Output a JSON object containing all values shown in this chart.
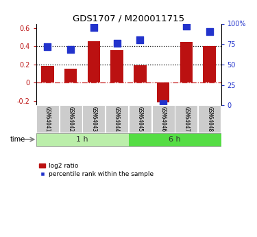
{
  "title": "GDS1707 / M200011715",
  "samples": [
    "GSM64041",
    "GSM64042",
    "GSM64043",
    "GSM64044",
    "GSM64045",
    "GSM64046",
    "GSM64047",
    "GSM64048"
  ],
  "log2_ratio": [
    0.18,
    0.15,
    0.46,
    0.36,
    0.19,
    -0.22,
    0.45,
    0.4
  ],
  "percentile_rank": [
    0.72,
    0.68,
    0.95,
    0.76,
    0.8,
    0.02,
    0.97,
    0.9
  ],
  "groups": [
    {
      "label": "1 h",
      "start": 0,
      "end": 4
    },
    {
      "label": "6 h",
      "start": 4,
      "end": 8
    }
  ],
  "ylim_left": [
    -0.25,
    0.65
  ],
  "ylim_right": [
    -0.25,
    0.65
  ],
  "yticks_left": [
    -0.2,
    0.0,
    0.2,
    0.4,
    0.6
  ],
  "yticks_right": [
    -0.025,
    0.2,
    0.425,
    0.65
  ],
  "ytick_labels_right": [
    "0",
    "25",
    "50",
    "75"
  ],
  "ytick_label_top": "100%",
  "ytick_labels_left": [
    "-0.2",
    "0",
    "0.2",
    "0.4",
    "0.6"
  ],
  "bar_color": "#bb1111",
  "dot_color": "#2233cc",
  "hline_y": 0.0,
  "hline_color": "#cc3333",
  "dotted_lines": [
    0.2,
    0.4
  ],
  "background_color": "#ffffff",
  "group_colors": [
    "#bbeeaa",
    "#55dd44"
  ],
  "group_label_color": "#333333",
  "bar_width": 0.55,
  "dot_size": 55,
  "label_bg_color": "#cccccc",
  "label_sep_color": "#aaaaaa"
}
